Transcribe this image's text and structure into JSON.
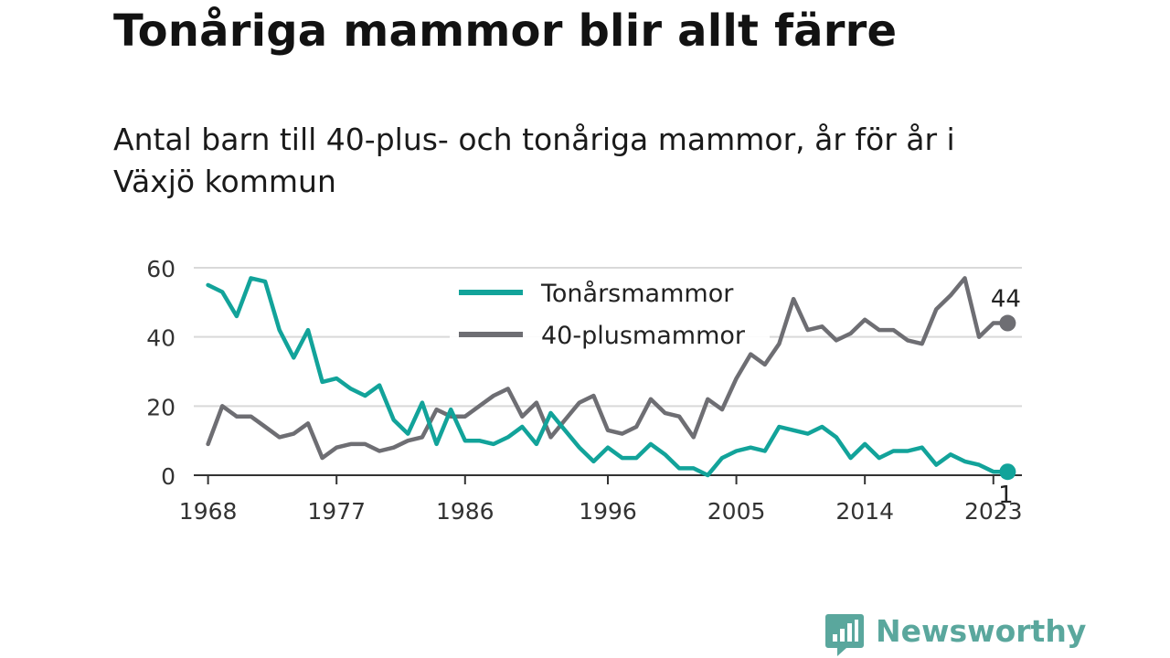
{
  "chart_data": {
    "type": "line",
    "title": "Tonåriga mammor blir allt färre",
    "subtitle": "Antal barn till 40-plus- och tonåriga mammor, år för år i Växjö kommun",
    "xlabel": "",
    "ylabel": "",
    "xlim": [
      1967,
      2025
    ],
    "ylim": [
      0,
      60
    ],
    "x_ticks": [
      1968,
      1977,
      1986,
      1996,
      2005,
      2014,
      2023
    ],
    "y_ticks": [
      0,
      20,
      40,
      60
    ],
    "grid": true,
    "legend_position": "top-center",
    "x": [
      1968,
      1969,
      1970,
      1971,
      1972,
      1973,
      1974,
      1975,
      1976,
      1977,
      1978,
      1979,
      1980,
      1981,
      1982,
      1983,
      1984,
      1985,
      1986,
      1987,
      1988,
      1989,
      1990,
      1991,
      1992,
      1993,
      1994,
      1995,
      1996,
      1997,
      1998,
      1999,
      2000,
      2001,
      2002,
      2003,
      2004,
      2005,
      2006,
      2007,
      2008,
      2009,
      2010,
      2011,
      2012,
      2013,
      2014,
      2015,
      2016,
      2017,
      2018,
      2019,
      2020,
      2021,
      2022,
      2023,
      2024
    ],
    "series": [
      {
        "name": "Tonårsmammor",
        "color": "#12a39a",
        "values": [
          55,
          53,
          46,
          57,
          56,
          42,
          34,
          42,
          27,
          28,
          25,
          23,
          26,
          16,
          12,
          21,
          9,
          19,
          10,
          10,
          9,
          11,
          14,
          9,
          18,
          13,
          8,
          4,
          8,
          5,
          5,
          9,
          6,
          2,
          2,
          0,
          5,
          7,
          8,
          7,
          14,
          13,
          12,
          14,
          11,
          5,
          9,
          5,
          7,
          7,
          8,
          3,
          6,
          4,
          3,
          1,
          1
        ],
        "end_label": "1"
      },
      {
        "name": "40-plusmammor",
        "color": "#6e6e73",
        "values": [
          9,
          20,
          17,
          17,
          14,
          11,
          12,
          15,
          5,
          8,
          9,
          9,
          7,
          8,
          10,
          11,
          19,
          17,
          17,
          20,
          23,
          25,
          17,
          21,
          11,
          16,
          21,
          23,
          13,
          12,
          14,
          22,
          18,
          17,
          11,
          22,
          19,
          28,
          35,
          32,
          38,
          51,
          42,
          43,
          39,
          41,
          45,
          42,
          42,
          39,
          38,
          48,
          52,
          57,
          40,
          44,
          44
        ],
        "end_label": "44"
      }
    ]
  },
  "brand": {
    "name": "Newsworthy",
    "color": "#5aa79d"
  }
}
